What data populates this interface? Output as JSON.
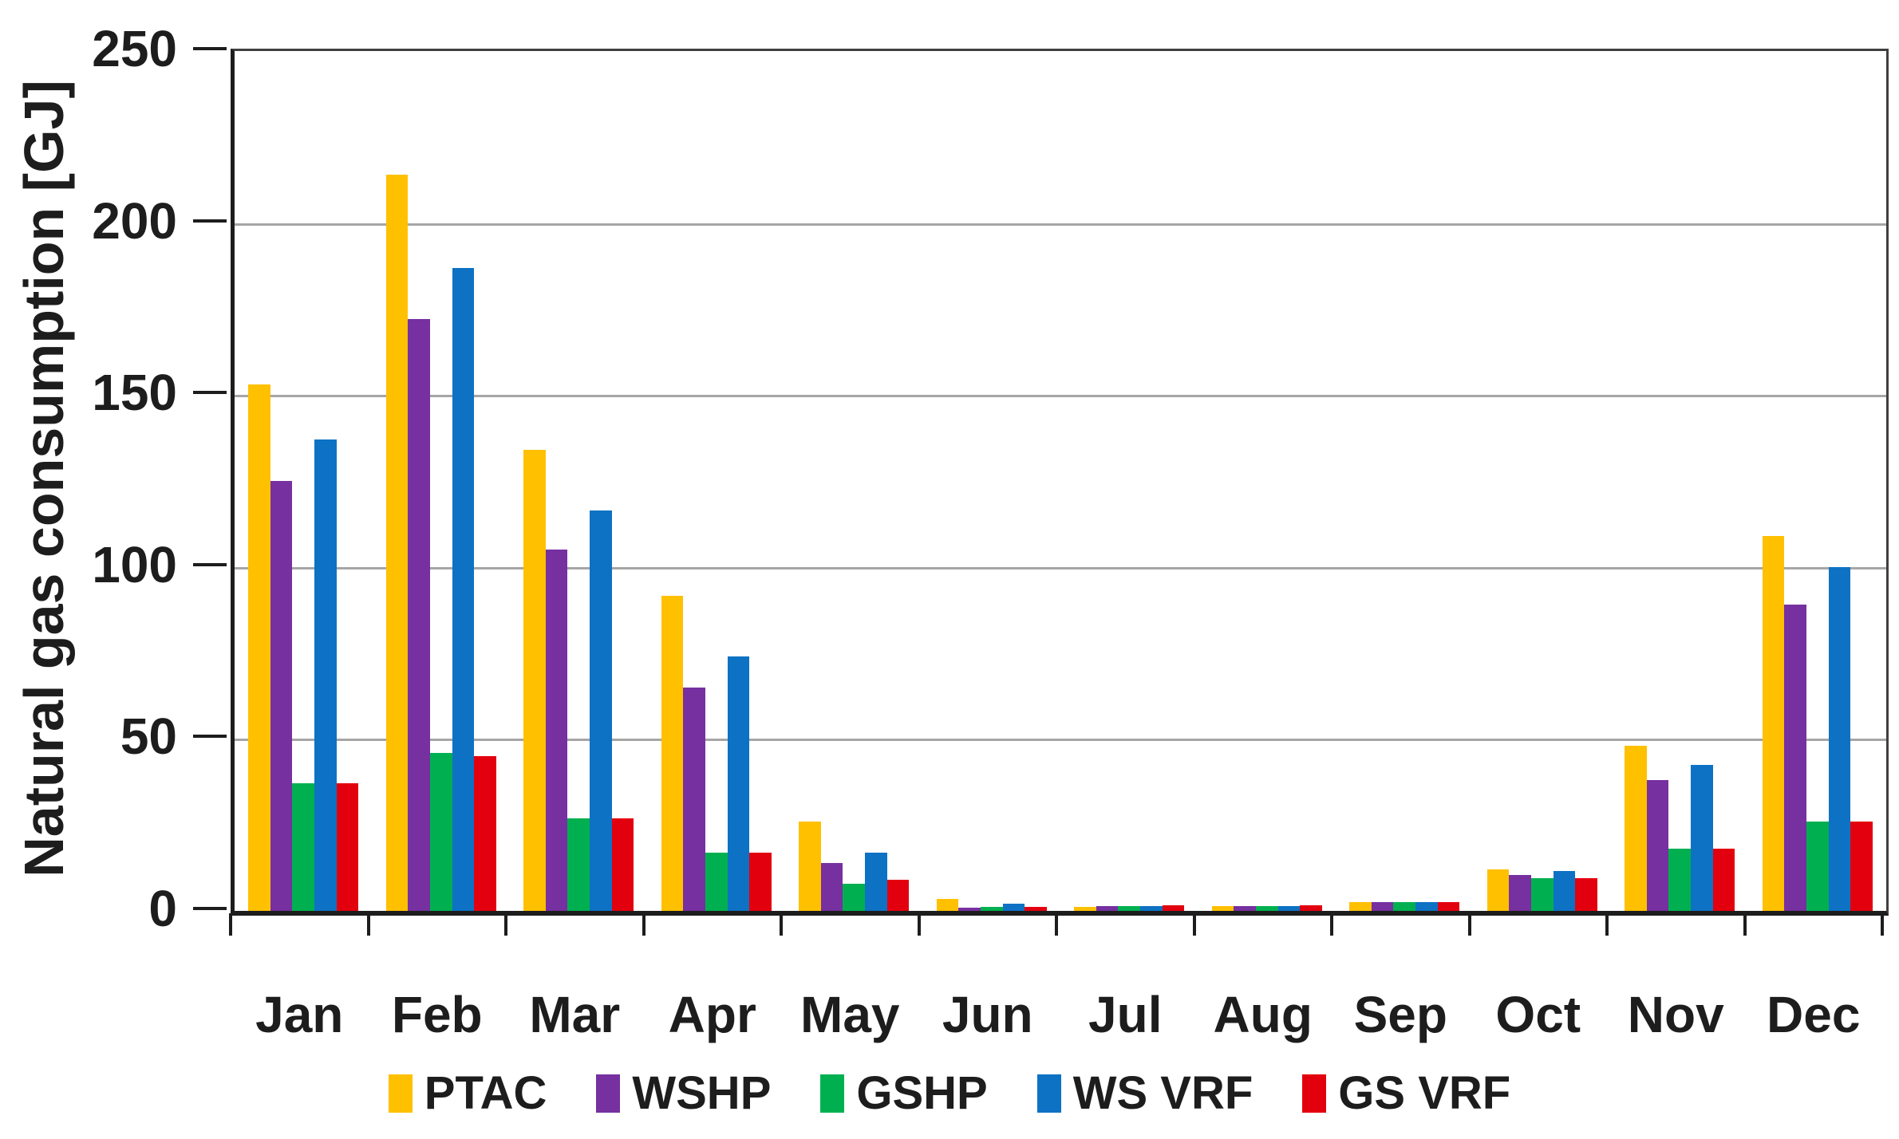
{
  "chart_data": {
    "type": "bar",
    "title": "",
    "xlabel": "",
    "ylabel": "Natural gas consumption [GJ]",
    "ylim": [
      0,
      250
    ],
    "yticks": [
      0,
      50,
      100,
      150,
      200,
      250
    ],
    "grid": true,
    "legend_position": "bottom",
    "categories": [
      "Jan",
      "Feb",
      "Mar",
      "Apr",
      "May",
      "Jun",
      "Jul",
      "Aug",
      "Sep",
      "Oct",
      "Nov",
      "Dec"
    ],
    "series": [
      {
        "name": "PTAC",
        "color": "#FFC000",
        "values": [
          153,
          214,
          134,
          91.5,
          26,
          3.5,
          1.2,
          1.3,
          2.5,
          12,
          48,
          109
        ]
      },
      {
        "name": "WSHP",
        "color": "#7630A0",
        "values": [
          125,
          172,
          105,
          65,
          14,
          1.0,
          1.3,
          1.3,
          2.5,
          10.5,
          38,
          89
        ]
      },
      {
        "name": "GSHP",
        "color": "#00B050",
        "values": [
          37,
          46,
          27,
          17,
          8,
          1.2,
          1.3,
          1.3,
          2.5,
          9.5,
          18,
          26
        ]
      },
      {
        "name": "WS VRF",
        "color": "#0D72C4",
        "values": [
          137,
          187,
          116.5,
          74,
          17,
          2.2,
          1.4,
          1.3,
          2.5,
          11.5,
          42.5,
          100
        ]
      },
      {
        "name": "GS VRF",
        "color": "#E3000E",
        "values": [
          37,
          45,
          27,
          17,
          9,
          1.2,
          1.7,
          1.6,
          2.6,
          9.5,
          18,
          26
        ]
      }
    ],
    "axis_color": "#1d1d1d",
    "gridline_color": "#a6a6a6",
    "background_color": "#ffffff"
  }
}
